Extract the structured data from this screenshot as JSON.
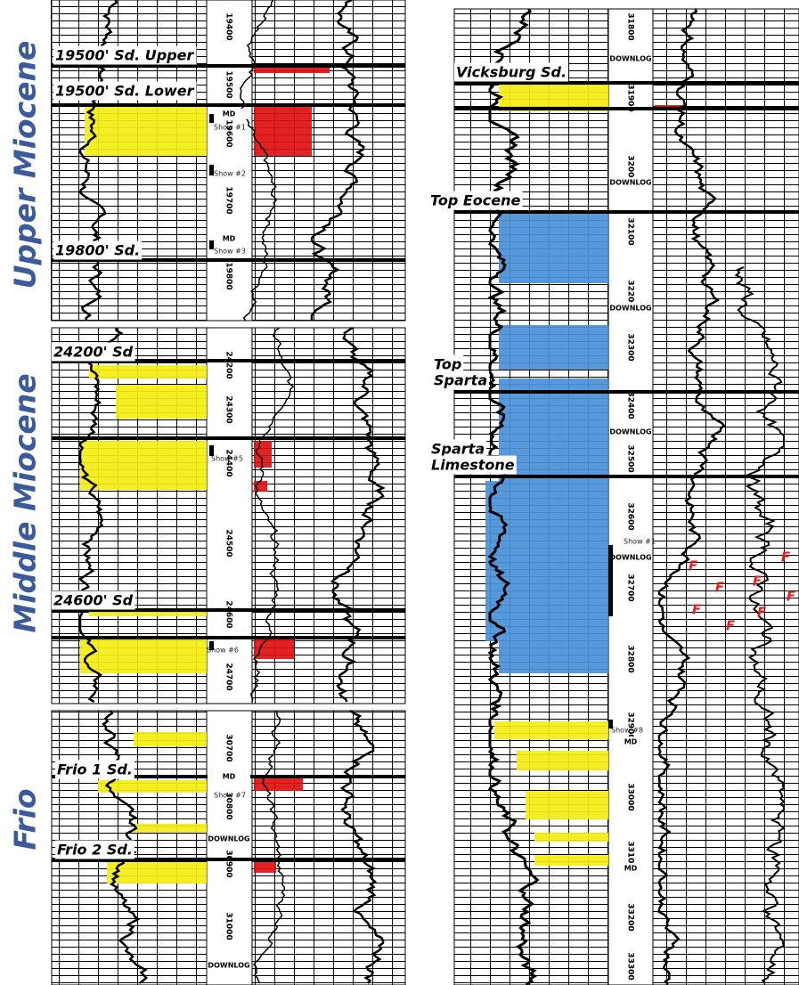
{
  "sections": [
    "Upper Miocene",
    "Middle Miocene",
    "Frio"
  ],
  "formations": [
    "19500' Sd. Upper",
    "19500' Sd. Lower",
    "19800' Sd.",
    "24200' Sd",
    "24600' Sd",
    "Frio 1 Sd.",
    "Frio 2 Sd.",
    "Vicksburg Sd.",
    "Top Eocene"
  ],
  "formations_multiline": [
    [
      "Top",
      "Sparta"
    ],
    [
      "Sparta",
      "Limestone"
    ]
  ],
  "depths_left": [
    "19400",
    "19500",
    "19600",
    "19700",
    "19800",
    "24200",
    "24300",
    "24400",
    "24500",
    "24600",
    "24700",
    "30700",
    "30800",
    "30900",
    "31000"
  ],
  "depths_right": [
    "31800",
    "31900",
    "32000",
    "32100",
    "32200",
    "32300",
    "32400",
    "32500",
    "32600",
    "32700",
    "32800",
    "32900",
    "33000",
    "33100",
    "33200",
    "33300"
  ],
  "tags": [
    "MD",
    "MD",
    "MD",
    "DOWNLOG",
    "DOWNLOG",
    "DOWNLOG",
    "DOWNLOG",
    "DOWNLOG",
    "DOWNLOG",
    "DOWNLOG",
    "MD",
    "MD"
  ],
  "shows": [
    "Show #1",
    "Show #2",
    "Show #3",
    "Show #5",
    "Show #6",
    "Show #7",
    "Show #1",
    "Show #8"
  ],
  "fault_marks": [
    "F",
    "F",
    "F",
    "F",
    "F",
    "F",
    "F",
    "F"
  ]
}
